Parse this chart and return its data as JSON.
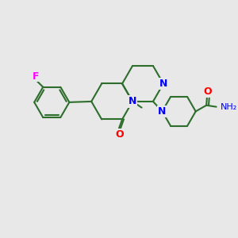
{
  "background_color": "#e8e8e8",
  "bond_color": "#2d6e2d",
  "atom_colors": {
    "N": "#0000ff",
    "O": "#ff0000",
    "F": "#ff00ff",
    "H": "#888888",
    "C": "#2d6e2d"
  },
  "figsize": [
    3.0,
    3.0
  ],
  "dpi": 100
}
